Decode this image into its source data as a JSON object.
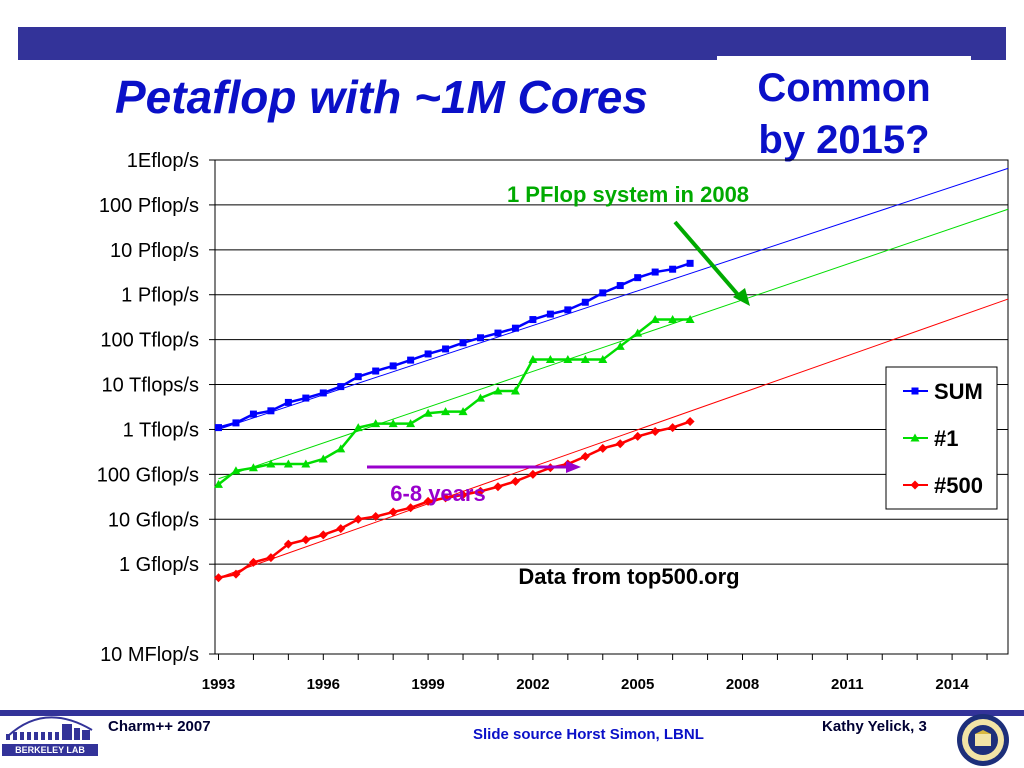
{
  "slide": {
    "title": "Petaflop with ~1M Cores",
    "callout_line1": "Common",
    "callout_line2": "by 2015?",
    "footer_left": "Charm++ 2007",
    "footer_center": "Slide source Horst Simon, LBNL",
    "footer_right": "Kathy Yelick,  3",
    "logo_text": "BERKELEY LAB"
  },
  "colors": {
    "bar": "#333399",
    "title": "#0a10c8",
    "sum": "#0000ff",
    "first": "#00dd00",
    "last": "#ff0000",
    "annotation_green": "#00aa00",
    "annotation_purple": "#9900cc"
  },
  "chart_data": {
    "type": "line",
    "scale": "log",
    "y_ticks": [
      {
        "value": 0.01,
        "label": "10 MFlop/s"
      },
      {
        "value": 1,
        "label": "1 Gflop/s"
      },
      {
        "value": 10,
        "label": "10 Gflop/s"
      },
      {
        "value": 100,
        "label": "100 Gflop/s"
      },
      {
        "value": 1000,
        "label": "1 Tflop/s"
      },
      {
        "value": 10000,
        "label": "10 Tflops/s"
      },
      {
        "value": 100000,
        "label": "100 Tflop/s"
      },
      {
        "value": 1000000,
        "label": "1 Pflop/s"
      },
      {
        "value": 10000000,
        "label": "10 Pflop/s"
      },
      {
        "value": 100000000,
        "label": "100 Pflop/s"
      },
      {
        "value": 1000000000,
        "label": "1Eflop/s"
      }
    ],
    "x_ticks": [
      1993,
      1996,
      1999,
      2002,
      2005,
      2008,
      2011,
      2014
    ],
    "xlim": [
      1992.9,
      2015.6
    ],
    "grid": true,
    "legend_position": "right",
    "series": [
      {
        "name": "SUM",
        "color": "#0000ff",
        "marker": "square",
        "x": [
          1993.0,
          1993.5,
          1994.0,
          1994.5,
          1995.0,
          1995.5,
          1996.0,
          1996.5,
          1997.0,
          1997.5,
          1998.0,
          1998.5,
          1999.0,
          1999.5,
          2000.0,
          2000.5,
          2001.0,
          2001.5,
          2002.0,
          2002.5,
          2003.0,
          2003.5,
          2004.0,
          2004.5,
          2005.0,
          2005.5,
          2006.0,
          2006.5
        ],
        "y": [
          1100,
          1400,
          2200,
          2600,
          4000,
          5000,
          6500,
          9000,
          15000,
          20000,
          26000,
          35000,
          48000,
          62000,
          85000,
          110000,
          140000,
          180000,
          280000,
          370000,
          460000,
          680000,
          1100000,
          1600000,
          2400000,
          3200000,
          3700000,
          5000000
        ]
      },
      {
        "name": "#1",
        "color": "#00dd00",
        "marker": "triangle",
        "x": [
          1993.0,
          1993.5,
          1994.0,
          1994.5,
          1995.0,
          1995.5,
          1996.0,
          1996.5,
          1997.0,
          1997.5,
          1998.0,
          1998.5,
          1999.0,
          1999.5,
          2000.0,
          2000.5,
          2001.0,
          2001.5,
          2002.0,
          2002.5,
          2003.0,
          2003.5,
          2004.0,
          2004.5,
          2005.0,
          2005.5,
          2006.0,
          2006.5
        ],
        "y": [
          60,
          120,
          140,
          170,
          170,
          170,
          220,
          370,
          1100,
          1350,
          1350,
          1350,
          2300,
          2500,
          2500,
          5000,
          7200,
          7200,
          36000,
          36000,
          36000,
          36000,
          36000,
          71000,
          140000,
          280000,
          280000,
          280000
        ]
      },
      {
        "name": "#500",
        "color": "#ff0000",
        "marker": "diamond",
        "x": [
          1993.0,
          1993.5,
          1994.0,
          1994.5,
          1995.0,
          1995.5,
          1996.0,
          1996.5,
          1997.0,
          1997.5,
          1998.0,
          1998.5,
          1999.0,
          1999.5,
          2000.0,
          2000.5,
          2001.0,
          2001.5,
          2002.0,
          2002.5,
          2003.0,
          2003.5,
          2004.0,
          2004.5,
          2005.0,
          2005.5,
          2006.0,
          2006.5
        ],
        "y": [
          0.5,
          0.6,
          1.1,
          1.4,
          2.8,
          3.5,
          4.5,
          6.2,
          10,
          11.5,
          14.5,
          18,
          25,
          30,
          35,
          42,
          53,
          70,
          100,
          140,
          170,
          250,
          380,
          480,
          700,
          900,
          1100,
          1500
        ]
      }
    ],
    "trend_lines": [
      {
        "series": "SUM",
        "from": [
          1993.0,
          1000
        ],
        "to": [
          2015.6,
          650000000
        ]
      },
      {
        "series": "#1",
        "from": [
          1993.0,
          80
        ],
        "to": [
          2015.6,
          80000000
        ]
      },
      {
        "series": "#500",
        "from": [
          1993.0,
          0.5
        ],
        "to": [
          2015.6,
          800000
        ]
      }
    ],
    "annotations": [
      {
        "text": "1 PFlop system in 2008",
        "color": "#00aa00"
      },
      {
        "text": "6-8 years",
        "color": "#9900cc"
      },
      {
        "text": "Data from top500.org",
        "color": "#000000"
      }
    ]
  }
}
